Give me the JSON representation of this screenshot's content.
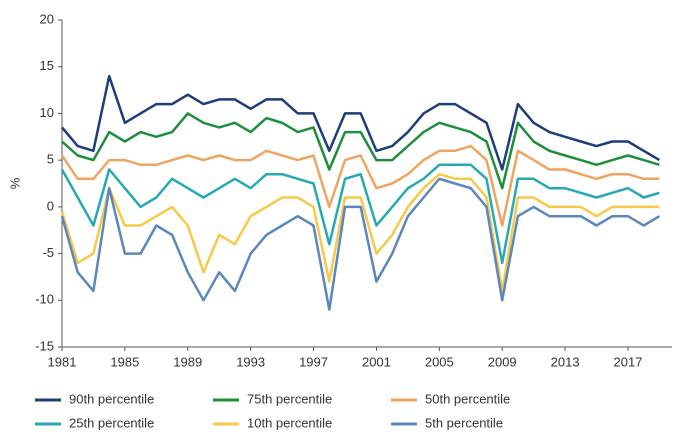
{
  "chart_data": {
    "type": "line",
    "y_label": "%",
    "x": [
      1981,
      1982,
      1983,
      1984,
      1985,
      1986,
      1987,
      1988,
      1989,
      1990,
      1991,
      1992,
      1993,
      1994,
      1995,
      1996,
      1997,
      1998,
      1999,
      2000,
      2001,
      2002,
      2003,
      2004,
      2005,
      2006,
      2007,
      2008,
      2009,
      2010,
      2011,
      2012,
      2013,
      2014,
      2015,
      2016,
      2017,
      2018,
      2019
    ],
    "xlim": [
      1981,
      2019.8
    ],
    "xticks": [
      1981,
      1985,
      1989,
      1993,
      1997,
      2001,
      2005,
      2009,
      2013,
      2017
    ],
    "ylim": [
      -15,
      20
    ],
    "yticks": [
      -15,
      -10,
      -5,
      0,
      5,
      10,
      15,
      20
    ],
    "series": [
      {
        "name": "90th percentile",
        "color": "#1f3d7a",
        "values": [
          8.5,
          6.5,
          6,
          14,
          9,
          10,
          11,
          11,
          12,
          11,
          11.5,
          11.5,
          10.5,
          11.5,
          11.5,
          10,
          10,
          6,
          10,
          10,
          6,
          6.5,
          8,
          10,
          11,
          11,
          10,
          9,
          4,
          11,
          9,
          8,
          7.5,
          7,
          6.5,
          7,
          7,
          6,
          5
        ]
      },
      {
        "name": "75th percentile",
        "color": "#1e8e3e",
        "values": [
          7,
          5.5,
          5,
          8,
          7,
          8,
          7.5,
          8,
          10,
          9,
          8.5,
          9,
          8,
          9.5,
          9,
          8,
          8.5,
          4,
          8,
          8,
          5,
          5,
          6.5,
          8,
          9,
          8.5,
          8,
          7,
          2,
          9,
          7,
          6,
          5.5,
          5,
          4.5,
          5,
          5.5,
          5,
          4.5
        ]
      },
      {
        "name": "50th percentile",
        "color": "#f0a462",
        "values": [
          5.5,
          3,
          3,
          5,
          5,
          4.5,
          4.5,
          5,
          5.5,
          5,
          5.5,
          5,
          5,
          6,
          5.5,
          5,
          5.5,
          0,
          5,
          5.5,
          2,
          2.5,
          3.5,
          5,
          6,
          6,
          6.5,
          5,
          -2,
          6,
          5,
          4,
          4,
          3.5,
          3,
          3.5,
          3.5,
          3,
          3
        ]
      },
      {
        "name": "25th percentile",
        "color": "#27a9b4",
        "values": [
          4,
          1,
          -2,
          4,
          2,
          0,
          1,
          3,
          2,
          1,
          2,
          3,
          2,
          3.5,
          3.5,
          3,
          2.5,
          -4,
          3,
          3.5,
          -2,
          0,
          2,
          3,
          4.5,
          4.5,
          4.5,
          3,
          -6,
          3,
          3,
          2,
          2,
          1.5,
          1,
          1.5,
          2,
          1,
          1.5
        ]
      },
      {
        "name": "10th percentile",
        "color": "#f8c84a",
        "values": [
          -0.5,
          -6,
          -5,
          2,
          -2,
          -2,
          -1,
          0,
          -2,
          -7,
          -3,
          -4,
          -1,
          0,
          1,
          1,
          0,
          -8,
          1,
          1,
          -5,
          -3,
          0,
          2,
          3.5,
          3,
          3,
          1,
          -9,
          1,
          1,
          0,
          0,
          0,
          -1,
          0,
          0,
          0,
          0
        ]
      },
      {
        "name": "5th percentile",
        "color": "#5b87bc",
        "values": [
          -1,
          -7,
          -9,
          2,
          -5,
          -5,
          -2,
          -3,
          -7,
          -10,
          -7,
          -9,
          -5,
          -3,
          -2,
          -1,
          -2,
          -11,
          0,
          0,
          -8,
          -5,
          -1,
          1,
          3,
          2.5,
          2,
          0,
          -10,
          -1,
          0,
          -1,
          -1,
          -1,
          -2,
          -1,
          -1,
          -2,
          -1
        ]
      }
    ]
  }
}
